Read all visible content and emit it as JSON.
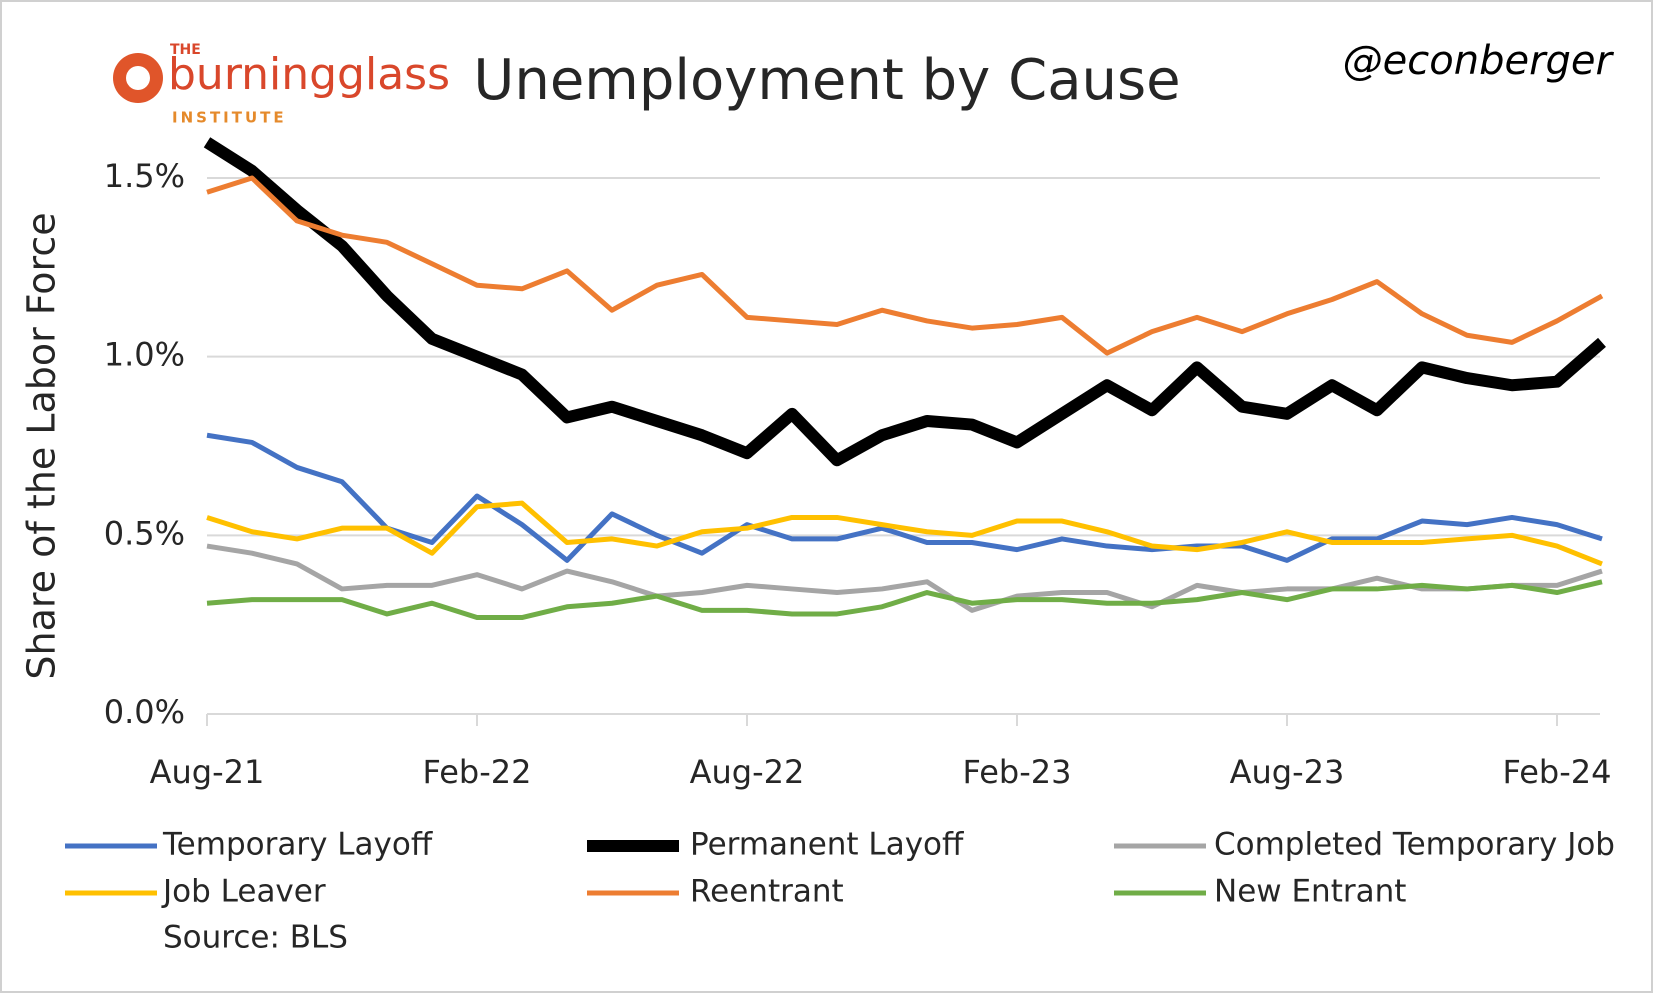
{
  "chart_data": {
    "type": "line",
    "title": "Unemployment by Cause",
    "handle": "@econberger",
    "logo": {
      "top": "THE",
      "name": "burningglass",
      "bottom": "INSTITUTE"
    },
    "y_label": "Share of the Labor Force",
    "source": "Source: BLS",
    "categories": [
      "Aug-21",
      null,
      null,
      null,
      null,
      null,
      "Feb-22",
      null,
      null,
      null,
      null,
      null,
      "Aug-22",
      null,
      null,
      null,
      null,
      null,
      "Feb-23",
      null,
      null,
      null,
      null,
      null,
      "Aug-23",
      null,
      null,
      null,
      null,
      null,
      "Feb-24",
      null
    ],
    "ylim": [
      0,
      1.5
    ],
    "yticks": [
      {
        "value": 0,
        "label": "0.0%"
      },
      {
        "value": 0.5,
        "label": "0.5%"
      },
      {
        "value": 1.0,
        "label": "1.0%"
      },
      {
        "value": 1.5,
        "label": "1.5%"
      }
    ],
    "grid": true,
    "series": [
      {
        "name": "Temporary Layoff",
        "color": "#4472c4",
        "width": 5,
        "values": [
          0.78,
          0.76,
          0.69,
          0.65,
          0.52,
          0.48,
          0.61,
          0.53,
          0.43,
          0.56,
          0.5,
          0.45,
          0.53,
          0.49,
          0.49,
          0.52,
          0.48,
          0.48,
          0.46,
          0.49,
          0.47,
          0.46,
          0.47,
          0.47,
          0.43,
          0.49,
          0.49,
          0.54,
          0.53,
          0.55,
          0.53,
          0.49
        ]
      },
      {
        "name": "Permanent Layoff",
        "color": "#000000",
        "width": 12,
        "values": [
          1.6,
          1.52,
          1.41,
          1.31,
          1.17,
          1.05,
          1.0,
          0.95,
          0.83,
          0.86,
          0.82,
          0.78,
          0.73,
          0.84,
          0.71,
          0.78,
          0.82,
          0.81,
          0.76,
          0.84,
          0.92,
          0.85,
          0.97,
          0.86,
          0.84,
          0.92,
          0.85,
          0.97,
          0.94,
          0.92,
          0.93,
          1.04
        ]
      },
      {
        "name": "Completed Temporary Job",
        "color": "#a5a5a5",
        "width": 5,
        "values": [
          0.47,
          0.45,
          0.42,
          0.35,
          0.36,
          0.36,
          0.39,
          0.35,
          0.4,
          0.37,
          0.33,
          0.34,
          0.36,
          0.35,
          0.34,
          0.35,
          0.37,
          0.29,
          0.33,
          0.34,
          0.34,
          0.3,
          0.36,
          0.34,
          0.35,
          0.35,
          0.38,
          0.35,
          0.35,
          0.36,
          0.36,
          0.4
        ]
      },
      {
        "name": "Job Leaver",
        "color": "#ffc000",
        "width": 5,
        "values": [
          0.55,
          0.51,
          0.49,
          0.52,
          0.52,
          0.45,
          0.58,
          0.59,
          0.48,
          0.49,
          0.47,
          0.51,
          0.52,
          0.55,
          0.55,
          0.53,
          0.51,
          0.5,
          0.54,
          0.54,
          0.51,
          0.47,
          0.46,
          0.48,
          0.51,
          0.48,
          0.48,
          0.48,
          0.49,
          0.5,
          0.47,
          0.42
        ]
      },
      {
        "name": "Reentrant",
        "color": "#ed7d31",
        "width": 5,
        "values": [
          1.46,
          1.5,
          1.38,
          1.34,
          1.32,
          1.26,
          1.2,
          1.19,
          1.24,
          1.13,
          1.2,
          1.23,
          1.11,
          1.1,
          1.09,
          1.13,
          1.1,
          1.08,
          1.09,
          1.11,
          1.01,
          1.07,
          1.11,
          1.07,
          1.12,
          1.16,
          1.21,
          1.12,
          1.06,
          1.04,
          1.1,
          1.17
        ]
      },
      {
        "name": "New Entrant",
        "color": "#70ad47",
        "width": 5,
        "values": [
          0.31,
          0.32,
          0.32,
          0.32,
          0.28,
          0.31,
          0.27,
          0.27,
          0.3,
          0.31,
          0.33,
          0.29,
          0.29,
          0.28,
          0.28,
          0.3,
          0.34,
          0.31,
          0.32,
          0.32,
          0.31,
          0.31,
          0.32,
          0.34,
          0.32,
          0.35,
          0.35,
          0.36,
          0.35,
          0.36,
          0.34,
          0.37
        ]
      }
    ]
  }
}
